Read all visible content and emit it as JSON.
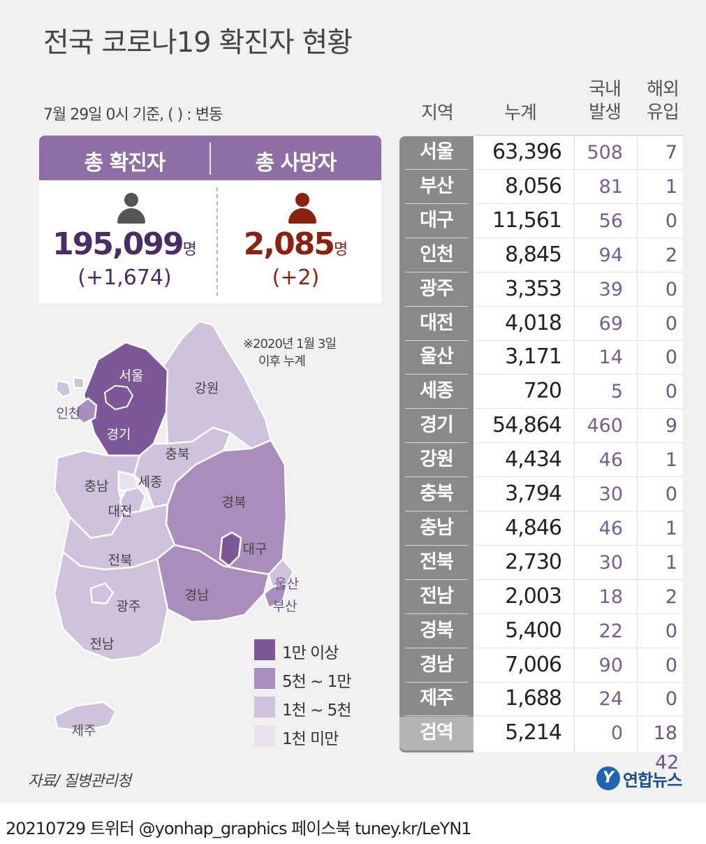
{
  "title": "전국 코로나19 확진자 현황",
  "note": "7월 29일 0시 기준, ( ) : 변동",
  "summary": {
    "confirmed": {
      "label": "총 확진자",
      "value": "195,099",
      "unit": "명",
      "delta": "(+1,674)",
      "color": "#4a2d63",
      "icon": "person-icon-gray"
    },
    "deaths": {
      "label": "총 사망자",
      "value": "2,085",
      "unit": "명",
      "delta": "(+2)",
      "color": "#8a2212",
      "icon": "person-icon-red"
    }
  },
  "map": {
    "note_line1": "※2020년 1월 3일",
    "note_line2": "이후 누계",
    "region_labels": [
      "서울",
      "인천",
      "경기",
      "강원",
      "충북",
      "충남",
      "세종",
      "대전",
      "경북",
      "대구",
      "울산",
      "전북",
      "경남",
      "부산",
      "광주",
      "전남",
      "제주"
    ]
  },
  "legend": [
    {
      "label": "1만 이상",
      "color": "#7d5898"
    },
    {
      "label": "5천 ~ 1만",
      "color": "#a98dbd"
    },
    {
      "label": "1천 ~ 5천",
      "color": "#cfc2dc"
    },
    {
      "label": "1천 미만",
      "color": "#e8e2ef"
    }
  ],
  "table": {
    "headers": {
      "region": "지역",
      "total": "누계",
      "domestic_1": "국내",
      "domestic_2": "발생",
      "overseas_1": "해외",
      "overseas_2": "유입"
    }
  },
  "chart_data": {
    "type": "table",
    "columns": [
      "지역",
      "누계",
      "국내 발생",
      "해외 유입"
    ],
    "rows": [
      {
        "region": "서울",
        "total": "63,396",
        "domestic": "508",
        "overseas": "7"
      },
      {
        "region": "부산",
        "total": "8,056",
        "domestic": "81",
        "overseas": "1"
      },
      {
        "region": "대구",
        "total": "11,561",
        "domestic": "56",
        "overseas": "0"
      },
      {
        "region": "인천",
        "total": "8,845",
        "domestic": "94",
        "overseas": "2"
      },
      {
        "region": "광주",
        "total": "3,353",
        "domestic": "39",
        "overseas": "0"
      },
      {
        "region": "대전",
        "total": "4,018",
        "domestic": "69",
        "overseas": "0"
      },
      {
        "region": "울산",
        "total": "3,171",
        "domestic": "14",
        "overseas": "0"
      },
      {
        "region": "세종",
        "total": "720",
        "domestic": "5",
        "overseas": "0"
      },
      {
        "region": "경기",
        "total": "54,864",
        "domestic": "460",
        "overseas": "9"
      },
      {
        "region": "강원",
        "total": "4,434",
        "domestic": "46",
        "overseas": "1"
      },
      {
        "region": "충북",
        "total": "3,794",
        "domestic": "30",
        "overseas": "0"
      },
      {
        "region": "충남",
        "total": "4,846",
        "domestic": "46",
        "overseas": "1"
      },
      {
        "region": "전북",
        "total": "2,730",
        "domestic": "30",
        "overseas": "1"
      },
      {
        "region": "전남",
        "total": "2,003",
        "domestic": "18",
        "overseas": "2"
      },
      {
        "region": "경북",
        "total": "5,400",
        "domestic": "22",
        "overseas": "0"
      },
      {
        "region": "경남",
        "total": "7,006",
        "domestic": "90",
        "overseas": "0"
      },
      {
        "region": "제주",
        "total": "1,688",
        "domestic": "24",
        "overseas": "0"
      },
      {
        "region": "검역",
        "total": "5,214",
        "domestic": "0",
        "overseas": "18"
      }
    ],
    "overflow_value": "42"
  },
  "source": "자료/ 질병관리청",
  "brand": {
    "logo": "Y",
    "name": "연합뉴스",
    "color": "#1f66b0"
  },
  "footer": "20210729 트위터 @yonhap_graphics  페이스북 tuney.kr/LeYN1"
}
